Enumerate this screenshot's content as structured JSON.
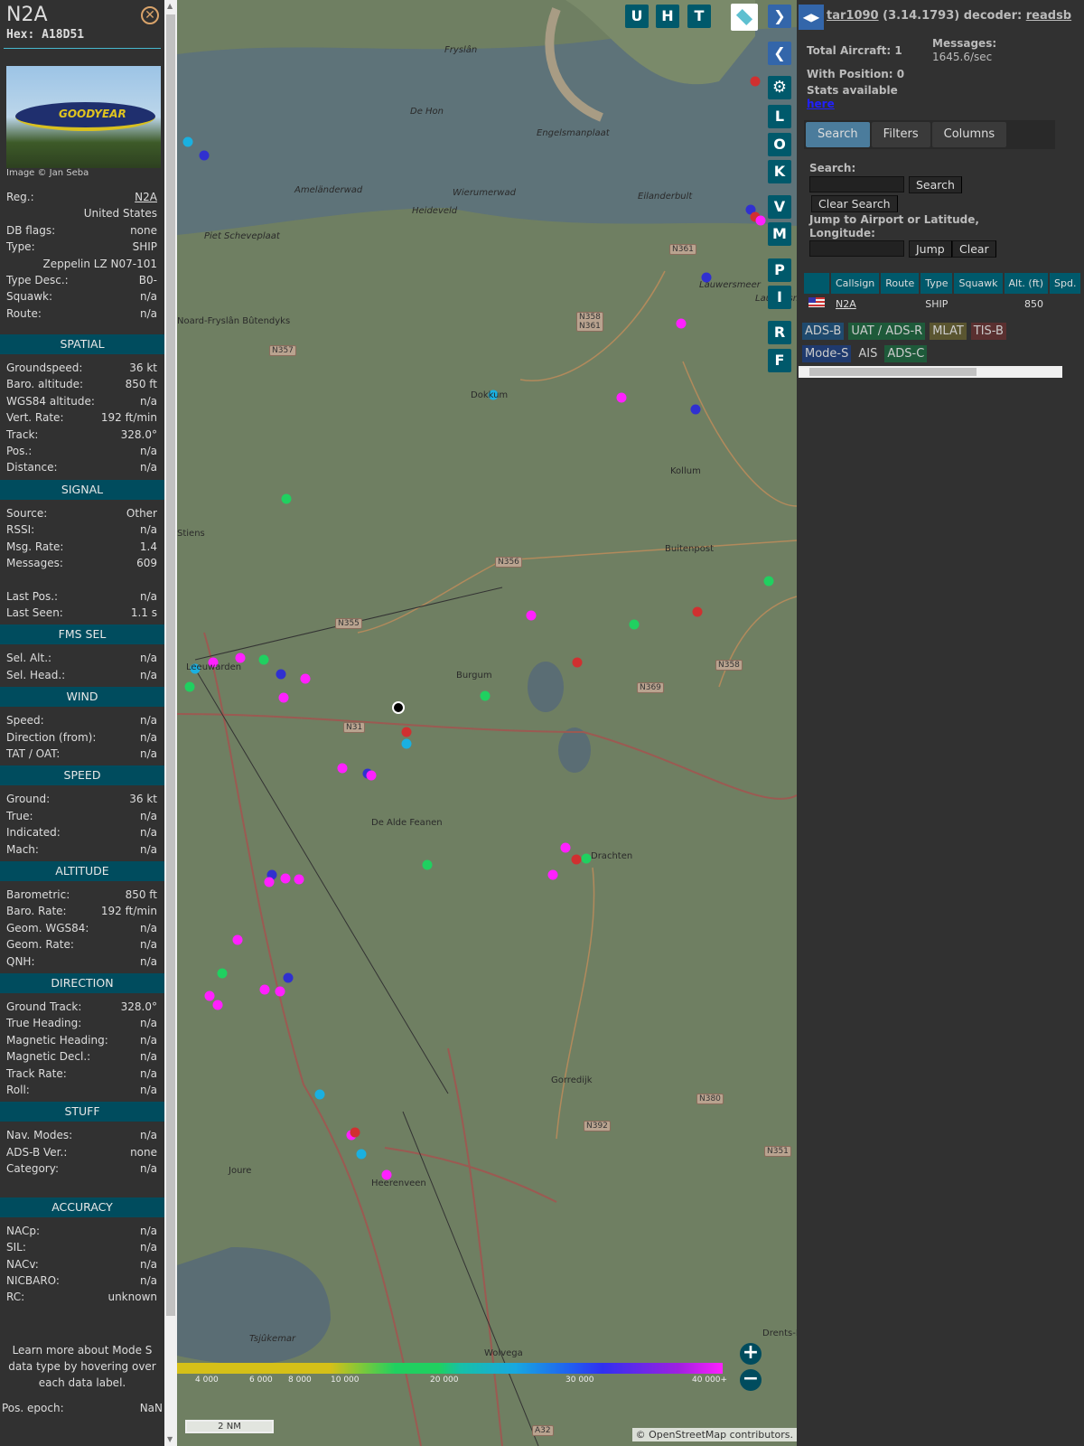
{
  "aircraft": {
    "callsign": "N2A",
    "hex_label": "Hex: A18D51",
    "image_credit": "Image © Jan Seba",
    "photo_text": "GOODYEAR"
  },
  "info_rows": [
    [
      "Reg.:",
      "N2A"
    ],
    [
      "",
      "United States"
    ],
    [
      "DB flags:",
      "none"
    ],
    [
      "Type:",
      "SHIP"
    ],
    [
      "",
      "Zeppelin LZ N07-101"
    ],
    [
      "Type Desc.:",
      "B0-"
    ],
    [
      "Squawk:",
      "n/a"
    ],
    [
      "Route:",
      "n/a"
    ]
  ],
  "sections": [
    {
      "title": "SPATIAL",
      "rows": [
        [
          "Groundspeed:",
          "36 kt"
        ],
        [
          "Baro. altitude:",
          "850 ft"
        ],
        [
          "WGS84 altitude:",
          "n/a"
        ],
        [
          "Vert. Rate:",
          "192 ft/min"
        ],
        [
          "Track:",
          "328.0°"
        ],
        [
          "Pos.:",
          "n/a"
        ],
        [
          "Distance:",
          "n/a"
        ]
      ]
    },
    {
      "title": "SIGNAL",
      "rows": [
        [
          "Source:",
          "Other"
        ],
        [
          "RSSI:",
          "n/a"
        ],
        [
          "Msg. Rate:",
          "1.4"
        ],
        [
          "Messages:",
          "609"
        ],
        [
          "",
          ""
        ],
        [
          "Last Pos.:",
          "n/a"
        ],
        [
          "Last Seen:",
          "1.1 s"
        ]
      ]
    },
    {
      "title": "FMS SEL",
      "rows": [
        [
          "Sel. Alt.:",
          "n/a"
        ],
        [
          "Sel. Head.:",
          "n/a"
        ]
      ]
    },
    {
      "title": "WIND",
      "rows": [
        [
          "Speed:",
          "n/a"
        ],
        [
          "Direction (from):",
          "n/a"
        ],
        [
          "TAT / OAT:",
          "n/a"
        ]
      ]
    },
    {
      "title": "SPEED",
      "rows": [
        [
          "Ground:",
          "36 kt"
        ],
        [
          "True:",
          "n/a"
        ],
        [
          "Indicated:",
          "n/a"
        ],
        [
          "Mach:",
          "n/a"
        ]
      ]
    },
    {
      "title": "ALTITUDE",
      "rows": [
        [
          "Barometric:",
          "850 ft"
        ],
        [
          "Baro. Rate:",
          "192 ft/min"
        ],
        [
          "Geom. WGS84:",
          "n/a"
        ],
        [
          "Geom. Rate:",
          "n/a"
        ],
        [
          "QNH:",
          "n/a"
        ]
      ]
    },
    {
      "title": "DIRECTION",
      "rows": [
        [
          "Ground Track:",
          "328.0°"
        ],
        [
          "True Heading:",
          "n/a"
        ],
        [
          "Magnetic Heading:",
          "n/a"
        ],
        [
          "Magnetic Decl.:",
          "n/a"
        ],
        [
          "Track Rate:",
          "n/a"
        ],
        [
          "Roll:",
          "n/a"
        ]
      ]
    },
    {
      "title": "STUFF",
      "rows": [
        [
          "Nav. Modes:",
          "n/a"
        ],
        [
          "ADS-B Ver.:",
          "none"
        ],
        [
          "Category:",
          "n/a"
        ],
        [
          "",
          ""
        ]
      ]
    },
    {
      "title": "ACCURACY",
      "rows": [
        [
          "NACp:",
          "n/a"
        ],
        [
          "SIL:",
          "n/a"
        ],
        [
          "NACv:",
          "n/a"
        ],
        [
          "NICBARO:",
          "n/a"
        ],
        [
          "RC:",
          "unknown"
        ]
      ]
    }
  ],
  "note": "Learn more about Mode S data type by hovering over each data label.",
  "pos_epoch": [
    "Pos. epoch:",
    "NaN"
  ],
  "map": {
    "buttons_top": [
      "U",
      "H",
      "T"
    ],
    "buttons_side": [
      "L",
      "O",
      "K",
      "V",
      "M",
      "P",
      "I",
      "R",
      "F"
    ],
    "places": [
      "Fryslân",
      "De Hon",
      "Engelsmanplaat",
      "Ameländerwad",
      "Wierumerwad",
      "Heideveld",
      "Eilanderbult",
      "Piet Scheveplaat",
      "Lauwersmeer",
      "Lauwersm",
      "Noard-Fryslân Bûtendyks",
      "Dokkum",
      "Kollum",
      "Stiens",
      "Buitenpost",
      "Leeuwarden",
      "Burgum",
      "De Alde Feanen",
      "Drachten",
      "Gorredijk",
      "Joure",
      "Heerenveen",
      "Tsjûkemar",
      "Wolvega",
      "Drents-Friese Wold"
    ],
    "roads": [
      "N361",
      "N358 N361",
      "N357",
      "N356",
      "N355",
      "N31",
      "N369",
      "N358",
      "N380",
      "N392",
      "N351",
      "A32"
    ],
    "altitude_legend": [
      "4 000",
      "6 000",
      "8 000",
      "10 000",
      "20 000",
      "30 000",
      "40 000+"
    ],
    "scale": "2 NM",
    "attribution": "© OpenStreetMap contributors."
  },
  "header": {
    "app": "tar1090",
    "version": "(3.14.1793) decoder:",
    "decoder": "readsb"
  },
  "stats": {
    "total": "Total Aircraft: 1",
    "messages_label": "Messages:",
    "messages_value": "1645.6/sec",
    "with_pos": "With Position: 0",
    "stats_available": "Stats available",
    "here": "here"
  },
  "tabs": [
    "Search",
    "Filters",
    "Columns"
  ],
  "search": {
    "label": "Search:",
    "search_btn": "Search",
    "clear_search": "Clear Search",
    "jump_label": "Jump to Airport or Latitude, Longitude:",
    "jump_btn": "Jump",
    "clear_btn": "Clear"
  },
  "table": {
    "headers": [
      "",
      "Callsign",
      "Route",
      "Type",
      "Squawk",
      "Alt. (ft)",
      "Spd."
    ],
    "rows": [
      {
        "flag": "us-flag",
        "callsign": "N2A",
        "route": "",
        "type": "SHIP",
        "squawk": "",
        "alt": "850",
        "spd": ""
      }
    ]
  },
  "sources": [
    {
      "label": "ADS-B",
      "color": "#1f4a6e"
    },
    {
      "label": "UAT / ADS-R",
      "color": "#1e5a3a"
    },
    {
      "label": "MLAT",
      "color": "#5a5530"
    },
    {
      "label": "TIS-B",
      "color": "#5a3030"
    },
    {
      "label": "Mode-S",
      "color": "#1f3a6e"
    },
    {
      "label": "AIS",
      "color": "#313131"
    },
    {
      "label": "ADS-C",
      "color": "#1e5a3a"
    }
  ]
}
